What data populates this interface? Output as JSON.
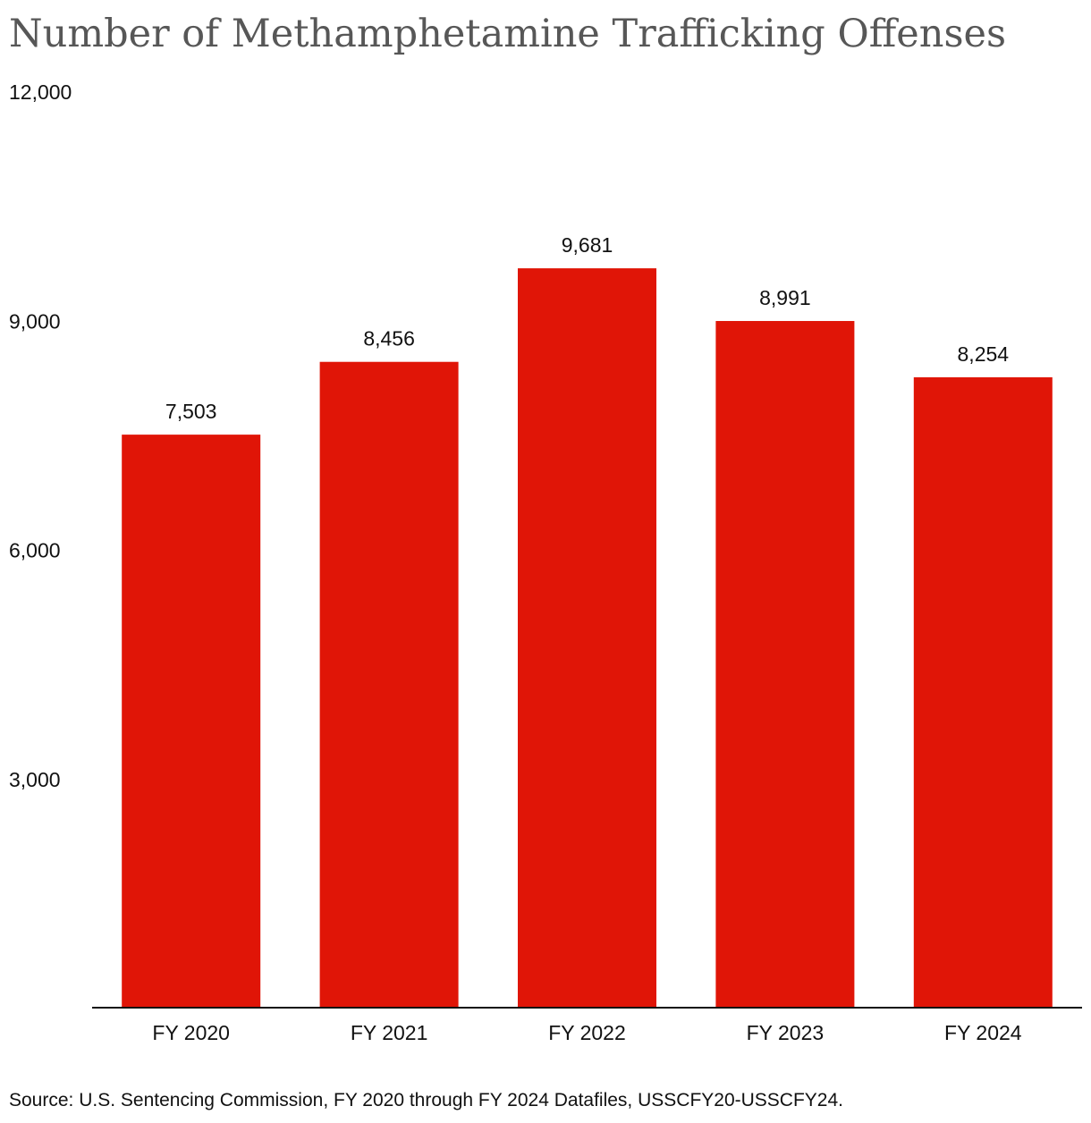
{
  "chart_data": {
    "type": "bar",
    "title": "Number of Methamphetamine Trafficking Offenses",
    "categories": [
      "FY 2020",
      "FY 2021",
      "FY 2022",
      "FY 2023",
      "FY 2024"
    ],
    "values": [
      7503,
      8456,
      9681,
      8991,
      8254
    ],
    "value_labels": [
      "7,503",
      "8,456",
      "9,681",
      "8,991",
      "8,254"
    ],
    "xlabel": "",
    "ylabel": "",
    "ylim": [
      0,
      12000
    ],
    "yticks": [
      3000,
      6000,
      9000,
      12000
    ],
    "ytick_labels": [
      "3,000",
      "6,000",
      "9,000",
      "12,000"
    ],
    "grid": false,
    "bar_color": "#e01507",
    "source": "Source: U.S. Sentencing Commission, FY 2020 through FY 2024 Datafiles, USSCFY20-USSCFY24."
  }
}
